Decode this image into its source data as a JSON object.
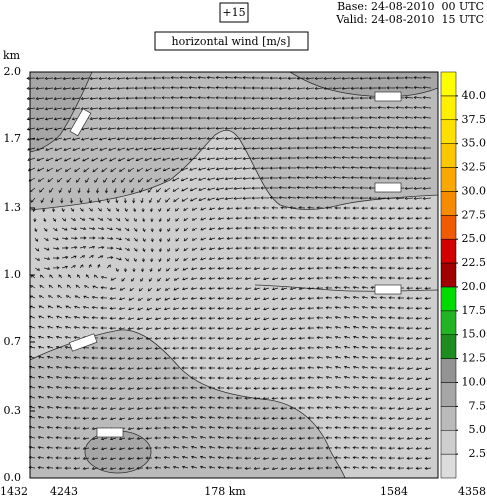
{
  "chart_data": {
    "type": "contour",
    "forecast_step": "+15",
    "base": "Base: 24-08-2010  00 UTC",
    "valid": "Valid: 24-08-2010  15 UTC",
    "title": "horizontal wind [m/s]",
    "ylabel": "km",
    "ylim": [
      0,
      2
    ],
    "yticks": [
      {
        "value": 0,
        "label": "0.0"
      },
      {
        "value": 0.33,
        "label": "0.3"
      },
      {
        "value": 0.67,
        "label": "0.7"
      },
      {
        "value": 1,
        "label": "1.0"
      },
      {
        "value": 1.33,
        "label": "1.3"
      },
      {
        "value": 1.67,
        "label": "1.7"
      },
      {
        "value": 2,
        "label": "2.0"
      }
    ],
    "x_labels": [
      "1432",
      "4243",
      "178 km",
      "1584",
      "4358"
    ],
    "levels": [
      2.5,
      {
        "value": 5,
        "label": "5.0"
      },
      7.5,
      {
        "value": 10,
        "label": "10.0"
      },
      12.5,
      {
        "value": 15,
        "label": "15.0"
      },
      17.5,
      {
        "value": 20,
        "label": "20.0"
      },
      22.5,
      {
        "value": 25,
        "label": "25.0"
      },
      27.5,
      {
        "value": 30,
        "label": "30.0"
      },
      32.5,
      {
        "value": 35,
        "label": "35.0"
      },
      37.5,
      {
        "value": 40,
        "label": "40.0"
      }
    ],
    "colors": [
      "#dcdcdc",
      "#cecece",
      "#bababa",
      "#a6a6a6",
      "#939393",
      "#1e8c1e",
      "#22b422",
      "#00dc00",
      "#a00000",
      "#d20000",
      "#f05a00",
      "#f58c00",
      "#f8a800",
      "#fbc800",
      "#fde000",
      "#fff000",
      "#ffff00"
    ]
  }
}
